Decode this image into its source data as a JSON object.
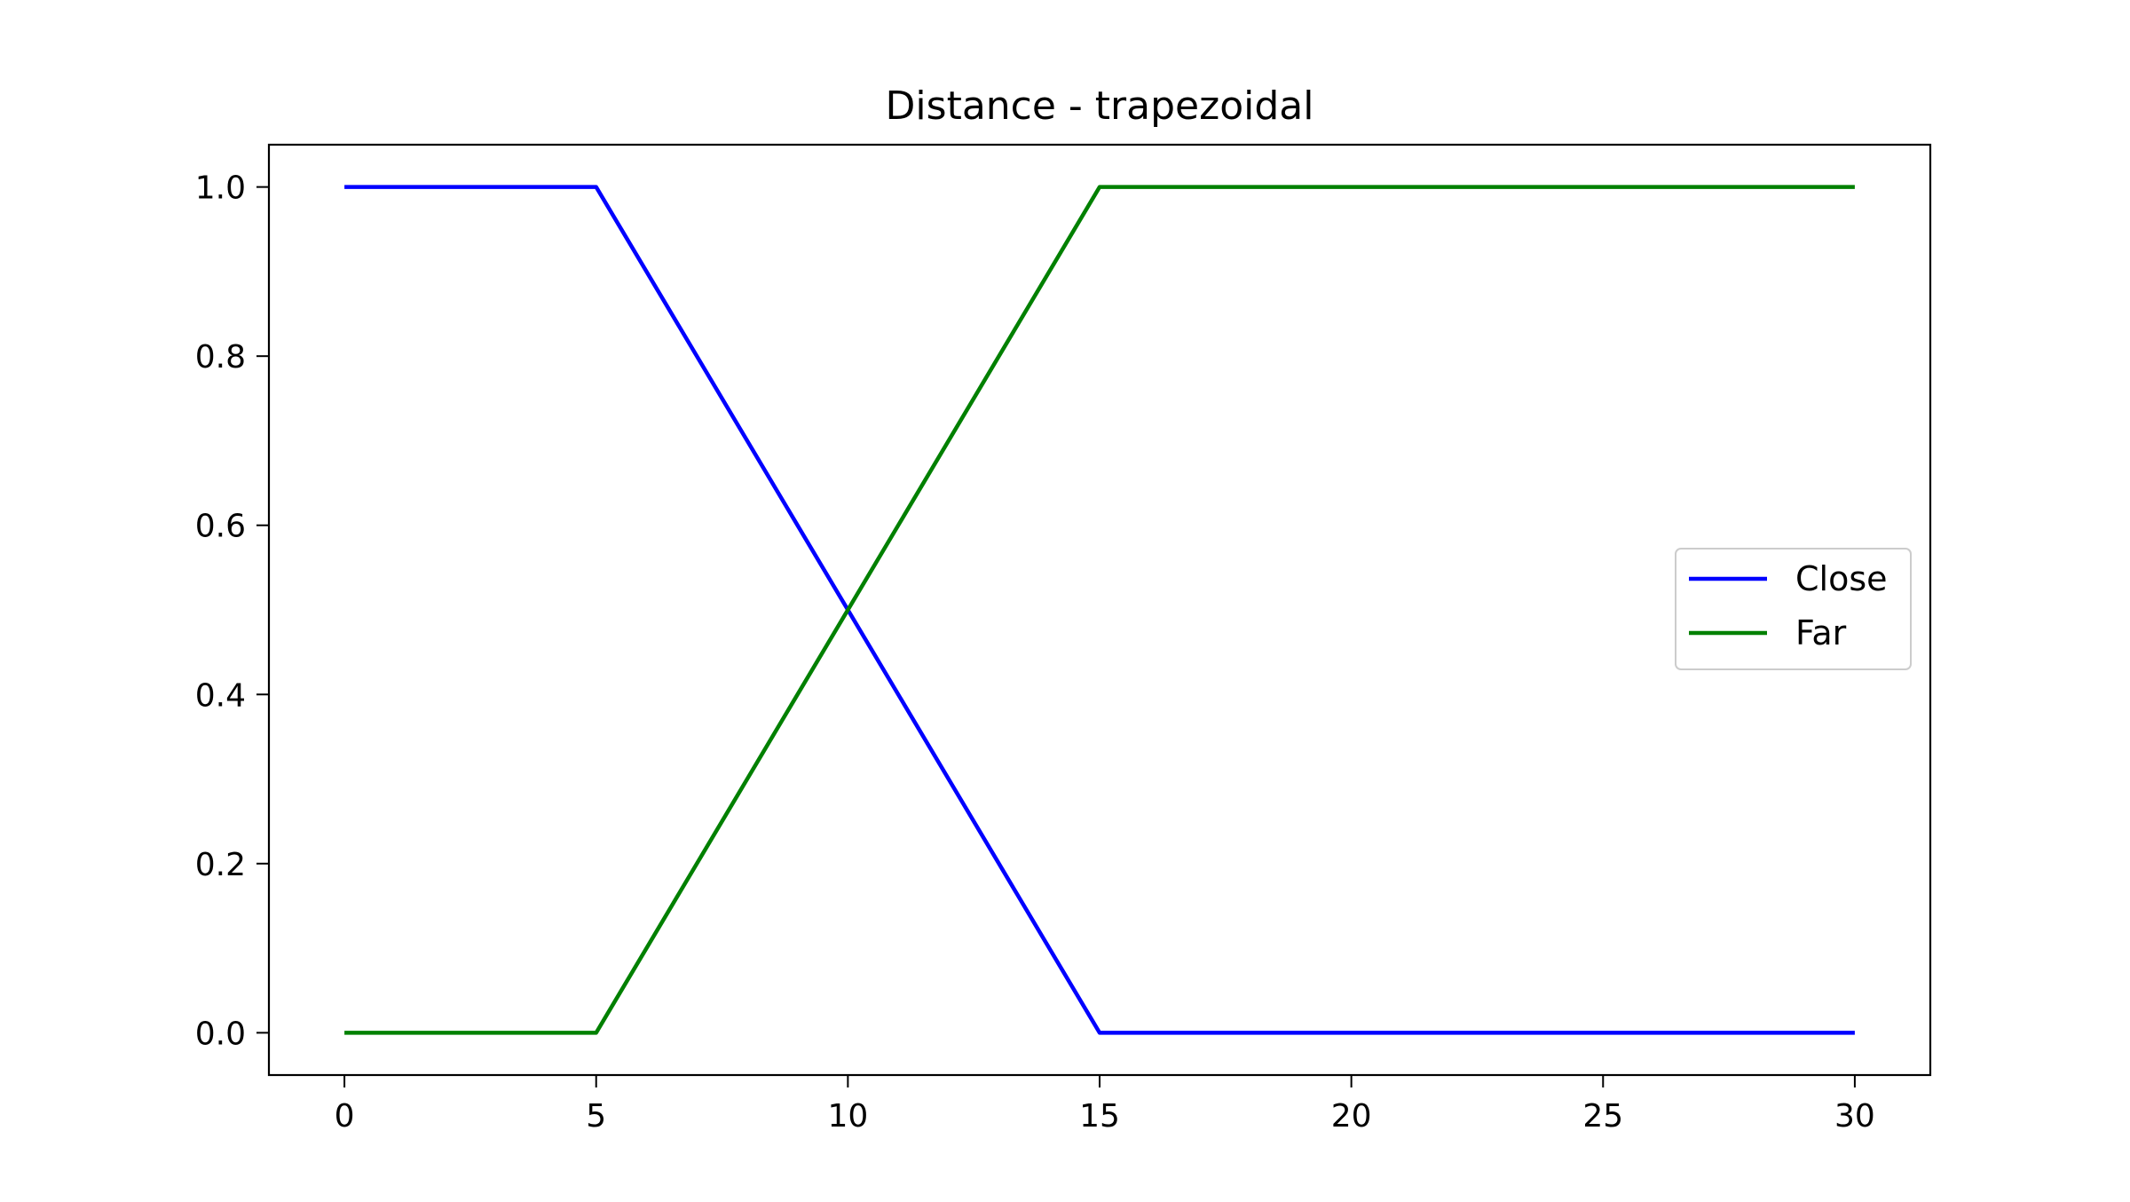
{
  "chart_data": {
    "type": "line",
    "title": "Distance - trapezoidal",
    "xlabel": "",
    "ylabel": "",
    "xlim": [
      -1.5,
      31.5
    ],
    "ylim": [
      -0.05,
      1.05
    ],
    "x_ticks": [
      0,
      5,
      10,
      15,
      20,
      25,
      30
    ],
    "y_ticks": [
      0.0,
      0.2,
      0.4,
      0.6,
      0.8,
      1.0
    ],
    "x_tick_labels": [
      "0",
      "5",
      "10",
      "15",
      "20",
      "25",
      "30"
    ],
    "y_tick_labels": [
      "0.0",
      "0.2",
      "0.4",
      "0.6",
      "0.8",
      "1.0"
    ],
    "grid": false,
    "legend_position": "center-right",
    "series": [
      {
        "name": "Close",
        "color": "#0000ff",
        "x": [
          0,
          5,
          15,
          30
        ],
        "y": [
          1.0,
          1.0,
          0.0,
          0.0
        ]
      },
      {
        "name": "Far",
        "color": "#008000",
        "x": [
          0,
          5,
          15,
          30
        ],
        "y": [
          0.0,
          0.0,
          1.0,
          1.0
        ]
      }
    ]
  }
}
